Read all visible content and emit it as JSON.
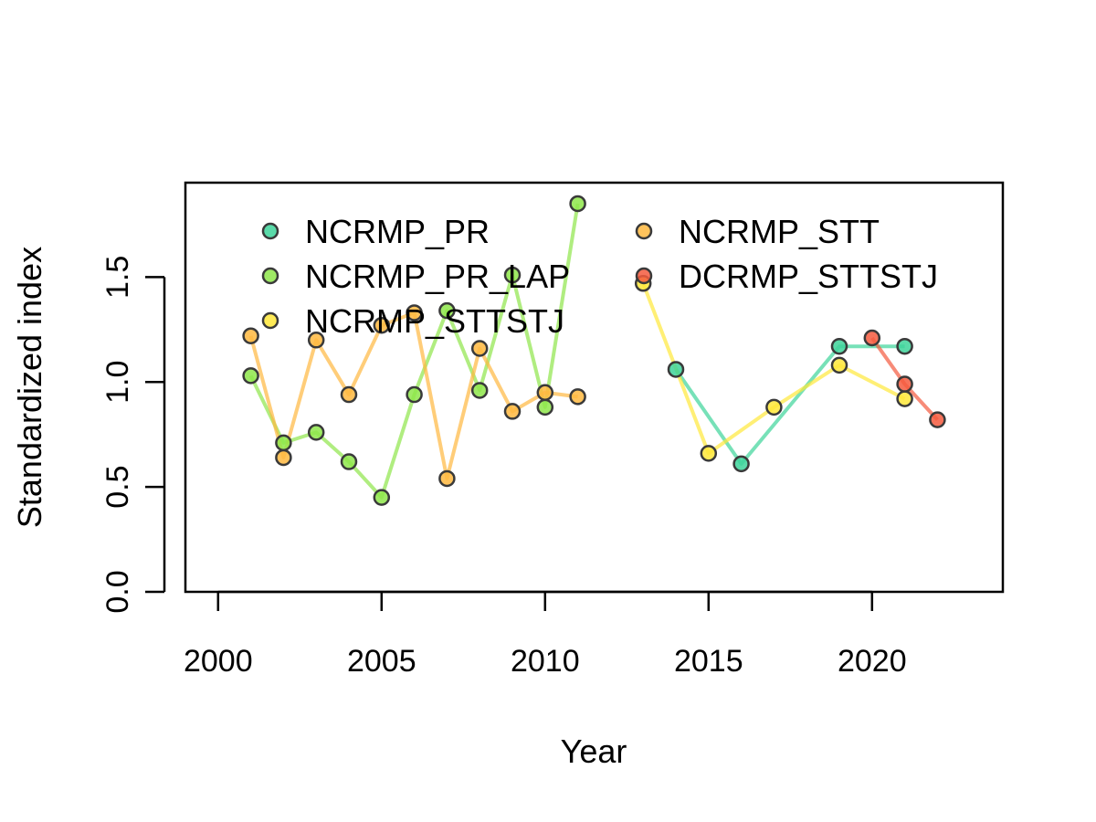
{
  "chart_data": {
    "type": "line",
    "title": "",
    "xlabel": "Year",
    "ylabel": "Standardized index",
    "xlim": [
      1999,
      2024
    ],
    "ylim": [
      0.0,
      1.95
    ],
    "x_ticks": [
      2000,
      2005,
      2010,
      2015,
      2020
    ],
    "y_ticks": [
      0.0,
      0.5,
      1.0,
      1.5
    ],
    "x_tick_labels": [
      "2000",
      "2005",
      "2010",
      "2015",
      "2020"
    ],
    "y_tick_labels": [
      "0.0",
      "0.5",
      "1.0",
      "1.5"
    ],
    "grid": false,
    "legend_position": "top",
    "series": [
      {
        "name": "NCRMP_PR",
        "color": "#3dd49a",
        "x": [
          2014,
          2016,
          2019,
          2021
        ],
        "y": [
          1.06,
          0.61,
          1.17,
          1.17
        ]
      },
      {
        "name": "NCRMP_PR_LAP",
        "color": "#8ee64a",
        "x": [
          2001,
          2002,
          2003,
          2004,
          2005,
          2006,
          2007,
          2008,
          2009,
          2010,
          2011
        ],
        "y": [
          1.03,
          0.71,
          0.76,
          0.62,
          0.45,
          0.94,
          1.34,
          0.96,
          1.51,
          0.88,
          1.85
        ]
      },
      {
        "name": "NCRMP_STTSTJ",
        "color": "#ffe83a",
        "x": [
          2013,
          2015,
          2017,
          2019,
          2021
        ],
        "y": [
          1.47,
          0.66,
          0.88,
          1.08,
          0.92
        ]
      },
      {
        "name": "NCRMP_STT",
        "color": "#ffb840",
        "x": [
          2001,
          2002,
          2003,
          2004,
          2005,
          2006,
          2007,
          2008,
          2009,
          2010,
          2011
        ],
        "y": [
          1.22,
          0.64,
          1.2,
          0.94,
          1.27,
          1.33,
          0.54,
          1.16,
          0.86,
          0.95,
          0.93
        ]
      },
      {
        "name": "DCRMP_STTSTJ",
        "color": "#f45a3e",
        "x": [
          2020,
          2021,
          2022
        ],
        "y": [
          1.21,
          0.99,
          0.82
        ]
      }
    ]
  }
}
